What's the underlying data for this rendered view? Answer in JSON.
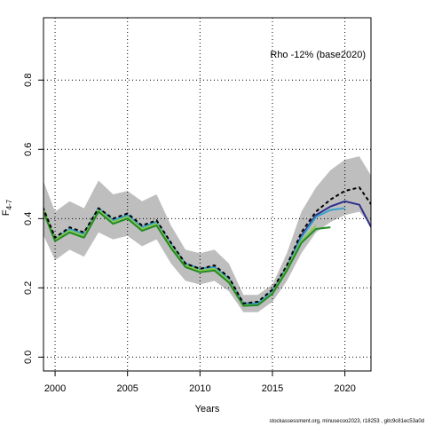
{
  "chart_data": {
    "type": "line",
    "xlabel": "Years",
    "ylabel_main": "F",
    "ylabel_sub": "4-7",
    "legend_text": "Rho -12% (base2020)",
    "legend_position": "top-right",
    "xlim": [
      1999.2,
      2021.8
    ],
    "ylim": [
      -0.04,
      0.98
    ],
    "x_ticks": [
      2000,
      2005,
      2010,
      2015,
      2020
    ],
    "y_ticks": [
      0.0,
      0.2,
      0.4,
      0.6,
      0.8
    ],
    "x_tick_labels": [
      "2000",
      "2005",
      "2010",
      "2015",
      "2020"
    ],
    "y_tick_labels": [
      "0.0",
      "0.2",
      "0.4",
      "0.6",
      "0.8"
    ],
    "grid": true,
    "band": {
      "color": "#bebebe",
      "x": [
        1999,
        2000,
        2001,
        2002,
        2003,
        2004,
        2005,
        2006,
        2007,
        2008,
        2009,
        2010,
        2011,
        2012,
        2013,
        2014,
        2015,
        2016,
        2017,
        2018,
        2019,
        2020,
        2021,
        2022
      ],
      "upper": [
        0.53,
        0.42,
        0.45,
        0.43,
        0.51,
        0.47,
        0.48,
        0.45,
        0.47,
        0.38,
        0.31,
        0.3,
        0.31,
        0.27,
        0.18,
        0.18,
        0.21,
        0.3,
        0.42,
        0.49,
        0.54,
        0.57,
        0.58,
        0.51
      ],
      "lower": [
        0.37,
        0.28,
        0.31,
        0.29,
        0.36,
        0.34,
        0.35,
        0.32,
        0.34,
        0.27,
        0.22,
        0.21,
        0.22,
        0.19,
        0.13,
        0.13,
        0.16,
        0.22,
        0.3,
        0.36,
        0.39,
        0.41,
        0.42,
        0.37
      ]
    },
    "series": [
      {
        "color": "#2d2d8c",
        "dashed": false,
        "width": 2,
        "x": [
          1999,
          2000,
          2001,
          2002,
          2003,
          2004,
          2005,
          2006,
          2007,
          2008,
          2009,
          2010,
          2011,
          2012,
          2013,
          2014,
          2015,
          2016,
          2017,
          2018,
          2019,
          2020,
          2021,
          2022
        ],
        "y": [
          0.45,
          0.34,
          0.37,
          0.355,
          0.43,
          0.395,
          0.41,
          0.375,
          0.39,
          0.325,
          0.27,
          0.255,
          0.26,
          0.225,
          0.155,
          0.155,
          0.19,
          0.26,
          0.35,
          0.41,
          0.435,
          0.45,
          0.44,
          0.36
        ]
      },
      {
        "color": "#3aa0c8",
        "dashed": false,
        "width": 2,
        "x": [
          1999,
          2000,
          2001,
          2002,
          2003,
          2004,
          2005,
          2006,
          2007,
          2008,
          2009,
          2010,
          2011,
          2012,
          2013,
          2014,
          2015,
          2016,
          2017,
          2018,
          2019,
          2020
        ],
        "y": [
          0.45,
          0.34,
          0.37,
          0.355,
          0.43,
          0.395,
          0.41,
          0.375,
          0.39,
          0.325,
          0.27,
          0.255,
          0.26,
          0.225,
          0.155,
          0.155,
          0.19,
          0.26,
          0.345,
          0.405,
          0.425,
          0.43
        ]
      },
      {
        "color": "#8cc850",
        "dashed": false,
        "width": 2,
        "x": [
          1999,
          2000,
          2001,
          2002,
          2003,
          2004,
          2005,
          2006,
          2007,
          2008,
          2009,
          2010,
          2011,
          2012,
          2013,
          2014,
          2015,
          2016,
          2017,
          2018
        ],
        "y": [
          0.45,
          0.34,
          0.365,
          0.35,
          0.425,
          0.39,
          0.405,
          0.37,
          0.385,
          0.32,
          0.265,
          0.25,
          0.255,
          0.22,
          0.15,
          0.15,
          0.185,
          0.255,
          0.335,
          0.38
        ]
      },
      {
        "color": "#228b22",
        "dashed": false,
        "width": 2,
        "x": [
          1999,
          2000,
          2001,
          2002,
          2003,
          2004,
          2005,
          2006,
          2007,
          2008,
          2009,
          2010,
          2011,
          2012,
          2013,
          2014,
          2015,
          2016,
          2017,
          2018,
          2019
        ],
        "y": [
          0.44,
          0.335,
          0.36,
          0.345,
          0.42,
          0.385,
          0.4,
          0.365,
          0.38,
          0.315,
          0.26,
          0.245,
          0.25,
          0.215,
          0.148,
          0.15,
          0.183,
          0.25,
          0.33,
          0.37,
          0.375
        ]
      },
      {
        "color": "#000000",
        "dashed": true,
        "width": 2,
        "x": [
          1999,
          2000,
          2001,
          2002,
          2003,
          2004,
          2005,
          2006,
          2007,
          2008,
          2009,
          2010,
          2011,
          2012,
          2013,
          2014,
          2015,
          2016,
          2017,
          2018,
          2019,
          2020,
          2021,
          2022
        ],
        "y": [
          0.45,
          0.345,
          0.375,
          0.36,
          0.43,
          0.4,
          0.415,
          0.38,
          0.395,
          0.33,
          0.27,
          0.255,
          0.265,
          0.23,
          0.155,
          0.16,
          0.195,
          0.265,
          0.36,
          0.42,
          0.455,
          0.48,
          0.49,
          0.43
        ]
      }
    ]
  },
  "footer_text": "stockassessment.org, minusecoo2023, r18253 , gitc9c81ec53a0d"
}
